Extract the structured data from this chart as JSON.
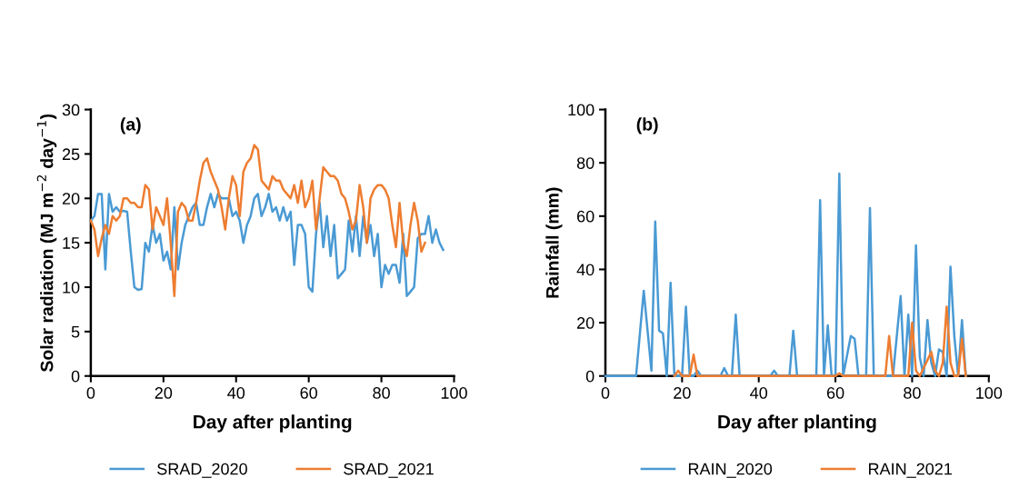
{
  "chart_data": [
    {
      "type": "line",
      "annotations": [
        "(a)"
      ],
      "xlabel": "Day after planting",
      "ylabel": "Solar radiation (MJ m$^{−2}$ day$^{−1}$)",
      "x": [
        0,
        1,
        2,
        3,
        4,
        5,
        6,
        7,
        8,
        9,
        10,
        11,
        12,
        13,
        14,
        15,
        16,
        17,
        18,
        19,
        20,
        21,
        22,
        23,
        24,
        25,
        26,
        27,
        28,
        29,
        30,
        31,
        32,
        33,
        34,
        35,
        36,
        37,
        38,
        39,
        40,
        41,
        42,
        43,
        44,
        45,
        46,
        47,
        48,
        49,
        50,
        51,
        52,
        53,
        54,
        55,
        56,
        57,
        58,
        59,
        60,
        61,
        62,
        63,
        64,
        65,
        66,
        67,
        68,
        69,
        70,
        71,
        72,
        73,
        74,
        75,
        76,
        77,
        78,
        79,
        80,
        81,
        82,
        83,
        84,
        85,
        86,
        87,
        88,
        89,
        90,
        91,
        92,
        93,
        94,
        95,
        96,
        97
      ],
      "series": [
        {
          "name": "SRAD_2020",
          "color": "#4a9ad4",
          "values": [
            17.5,
            18,
            20.5,
            20.5,
            12,
            20.5,
            18.5,
            19,
            18.5,
            18.6,
            18.5,
            14,
            10,
            9.7,
            9.8,
            15,
            14,
            17,
            15,
            16,
            13,
            14,
            12,
            19,
            12,
            15,
            17,
            18,
            19,
            19.5,
            17,
            17,
            19,
            20.5,
            19,
            20.5,
            20,
            20,
            20,
            18,
            18.5,
            17.5,
            15,
            17,
            18,
            20,
            20.5,
            18,
            19,
            20.5,
            18.5,
            19,
            17.5,
            19,
            17.5,
            18.5,
            12.5,
            17,
            17,
            16,
            10,
            9.5,
            16,
            19.5,
            14.5,
            18,
            13.5,
            17,
            11,
            11.5,
            12,
            17.5,
            14,
            18,
            13.5,
            18,
            15,
            17,
            13.5,
            16,
            10,
            12.5,
            11.5,
            12.5,
            12.5,
            10.5,
            16,
            9,
            9.5,
            10,
            15.5,
            16,
            16,
            18,
            15,
            16.5,
            15,
            14.2
          ]
        },
        {
          "name": "SRAD_2021",
          "color": "#ed7d31",
          "values": [
            17.5,
            16.5,
            13.5,
            15.5,
            17,
            16,
            18,
            17.5,
            18,
            20,
            20,
            19.5,
            19.5,
            19,
            19,
            21.5,
            21,
            16.5,
            19,
            18,
            17,
            20,
            15,
            9,
            18.5,
            19.5,
            19,
            17.5,
            17.5,
            19.5,
            22,
            24,
            24.5,
            23,
            22,
            21,
            19,
            16.5,
            20,
            22.5,
            21.5,
            18,
            23,
            24,
            24.5,
            26,
            25.5,
            22,
            21.5,
            21,
            22.5,
            22,
            22,
            21,
            20.5,
            20,
            21.5,
            19.5,
            22,
            19,
            20,
            22,
            16.5,
            20,
            23.5,
            23,
            22.5,
            22.5,
            22,
            20.5,
            20,
            18.5,
            16.5,
            17.5,
            21.5,
            19,
            15,
            20,
            21,
            21.5,
            21.5,
            21,
            20,
            17,
            14.5,
            19.5,
            15,
            13.5,
            17,
            19.5,
            17.5,
            14,
            15,
            null,
            null,
            null,
            null,
            null
          ]
        }
      ],
      "xlim": [
        0,
        100
      ],
      "xticks": [
        0,
        20,
        40,
        60,
        80,
        100
      ],
      "ylim": [
        0,
        30
      ],
      "yticks": [
        0,
        5,
        10,
        15,
        20,
        25,
        30
      ],
      "legend": "bottom",
      "grid": false,
      "marker": "none",
      "line_style": "solid"
    },
    {
      "type": "line",
      "annotations": [
        "(b)"
      ],
      "xlabel": "Day after planting",
      "ylabel": "Rainfall (mm)",
      "series": [
        {
          "name": "RAIN_2020",
          "color": "#4a9ad4",
          "x": [
            0,
            8,
            10,
            12,
            13,
            14,
            15,
            16,
            17,
            18,
            20,
            21,
            22,
            23,
            24,
            25,
            30,
            31,
            32,
            33,
            34,
            35,
            43,
            44,
            45,
            48,
            49,
            50,
            55,
            56,
            57,
            58,
            59,
            60,
            61,
            62,
            64,
            65,
            66,
            68,
            69,
            70,
            75,
            77,
            78,
            79,
            80,
            81,
            82,
            83,
            84,
            85,
            86,
            87,
            88,
            89,
            90,
            91,
            92,
            93,
            94
          ],
          "values": [
            0,
            0,
            32,
            2,
            58,
            17,
            16,
            0,
            35,
            0,
            0,
            26,
            0,
            0,
            2,
            0,
            0,
            3,
            0,
            0,
            23,
            0,
            0,
            2,
            0,
            0,
            17,
            0,
            0,
            66,
            0,
            19,
            0,
            0,
            76,
            0,
            15,
            14,
            0,
            0,
            63,
            0,
            0,
            30,
            0,
            23,
            0,
            49,
            7,
            0,
            21,
            5,
            0,
            10,
            9,
            0,
            41,
            15,
            0,
            21,
            0
          ]
        },
        {
          "name": "RAIN_2021",
          "color": "#ed7d31",
          "x": [
            18,
            19,
            20,
            22,
            23,
            24,
            25,
            60,
            61,
            62,
            73,
            74,
            75,
            78,
            79,
            80,
            81,
            82,
            83,
            85,
            86,
            87,
            88,
            89,
            90,
            91,
            92,
            93,
            94
          ],
          "values": [
            0,
            2,
            0,
            0,
            8,
            0,
            0,
            0,
            1,
            0,
            0,
            15,
            0,
            0,
            0,
            20,
            2,
            0,
            3,
            9,
            2,
            0,
            5,
            26,
            5,
            0,
            0,
            14,
            0
          ]
        }
      ],
      "xlim": [
        0,
        100
      ],
      "xticks": [
        0,
        20,
        40,
        60,
        80,
        100
      ],
      "ylim": [
        0,
        100
      ],
      "yticks": [
        0,
        20,
        40,
        60,
        80,
        100
      ],
      "legend": "bottom",
      "grid": false,
      "marker": "none",
      "line_style": "solid"
    }
  ]
}
